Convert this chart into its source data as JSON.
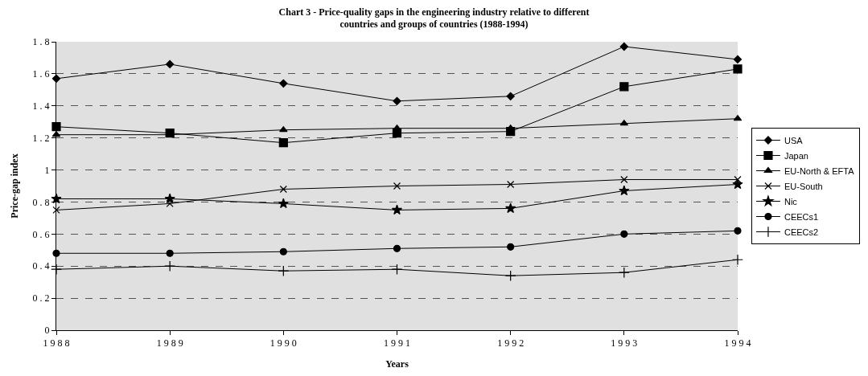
{
  "chart_data": {
    "type": "line",
    "title": "Chart 3 - Price-quality gaps in the engineering industry relative to different\ncountries and groups of countries (1988-1994)",
    "xlabel": "Years",
    "ylabel": "Price-gap index",
    "x": [
      1988,
      1989,
      1990,
      1991,
      1992,
      1993,
      1994
    ],
    "xlim": [
      1988,
      1994
    ],
    "xticks": [
      1988,
      1989,
      1990,
      1991,
      1992,
      1993,
      1994
    ],
    "ylim": [
      0,
      1.8
    ],
    "yticks": [
      0,
      0.2,
      0.4,
      0.6,
      0.8,
      1,
      1.2,
      1.4,
      1.6,
      1.8
    ],
    "grid": "y",
    "legend": "right",
    "line_style": "solid",
    "series": [
      {
        "name": "USA",
        "color": "#000000",
        "marker": "diamond",
        "values": [
          1.57,
          1.66,
          1.54,
          1.43,
          1.46,
          1.77,
          1.69
        ]
      },
      {
        "name": "Japan",
        "color": "#000000",
        "marker": "square",
        "values": [
          1.27,
          1.23,
          1.17,
          1.23,
          1.24,
          1.52,
          1.63
        ]
      },
      {
        "name": "EU-North & EFTA",
        "color": "#000000",
        "marker": "triangle",
        "values": [
          1.22,
          1.22,
          1.25,
          1.26,
          1.26,
          1.29,
          1.32
        ]
      },
      {
        "name": "EU-South",
        "color": "#000000",
        "marker": "x",
        "values": [
          0.75,
          0.79,
          0.88,
          0.9,
          0.91,
          0.94,
          0.94
        ]
      },
      {
        "name": "Nic",
        "color": "#000000",
        "marker": "star",
        "values": [
          0.82,
          0.82,
          0.79,
          0.75,
          0.76,
          0.87,
          0.91
        ]
      },
      {
        "name": "CEECs1",
        "color": "#000000",
        "marker": "circle",
        "values": [
          0.48,
          0.48,
          0.49,
          0.51,
          0.52,
          0.6,
          0.62
        ]
      },
      {
        "name": "CEECs2",
        "color": "#000000",
        "marker": "cross",
        "values": [
          0.38,
          0.4,
          0.37,
          0.38,
          0.34,
          0.36,
          0.44
        ]
      }
    ]
  }
}
